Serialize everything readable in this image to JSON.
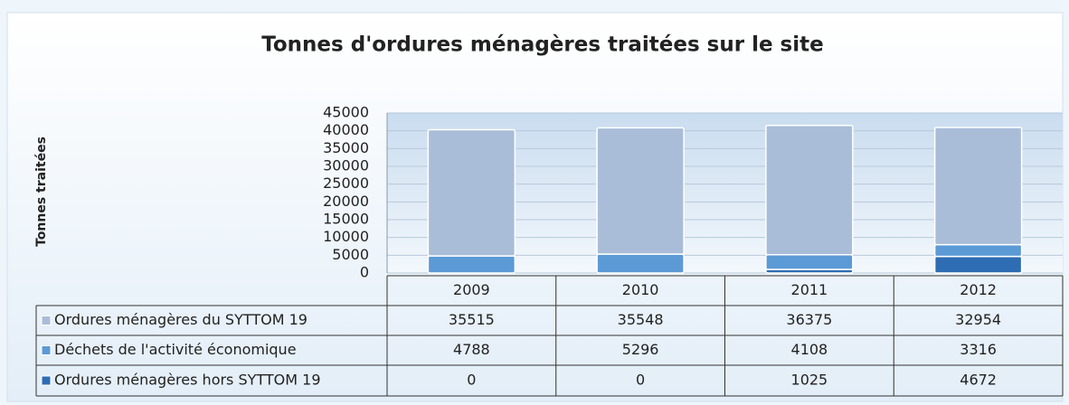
{
  "chart_data": {
    "type": "stacked_bar",
    "title": "Tonnes d'ordures ménagères traitées sur le site",
    "y_label": "Tonnes traitées",
    "categories": [
      "2009",
      "2010",
      "2011",
      "2012"
    ],
    "series": [
      {
        "name": "Ordures ménagères du SYTTOM 19",
        "color": "#a9bdd8",
        "values": [
          35515,
          35548,
          36375,
          32954
        ]
      },
      {
        "name": "Déchets de l'activité économique",
        "color": "#5c9ad6",
        "values": [
          4788,
          5296,
          4108,
          3316
        ]
      },
      {
        "name": "Ordures ménagères hors SYTTOM 19",
        "color": "#2e6db3",
        "values": [
          0,
          0,
          1025,
          4672
        ]
      }
    ],
    "ylim": [
      0,
      45000
    ],
    "yticks": [
      0,
      5000,
      10000,
      15000,
      20000,
      25000,
      30000,
      35000,
      40000,
      45000
    ],
    "grid": true
  }
}
